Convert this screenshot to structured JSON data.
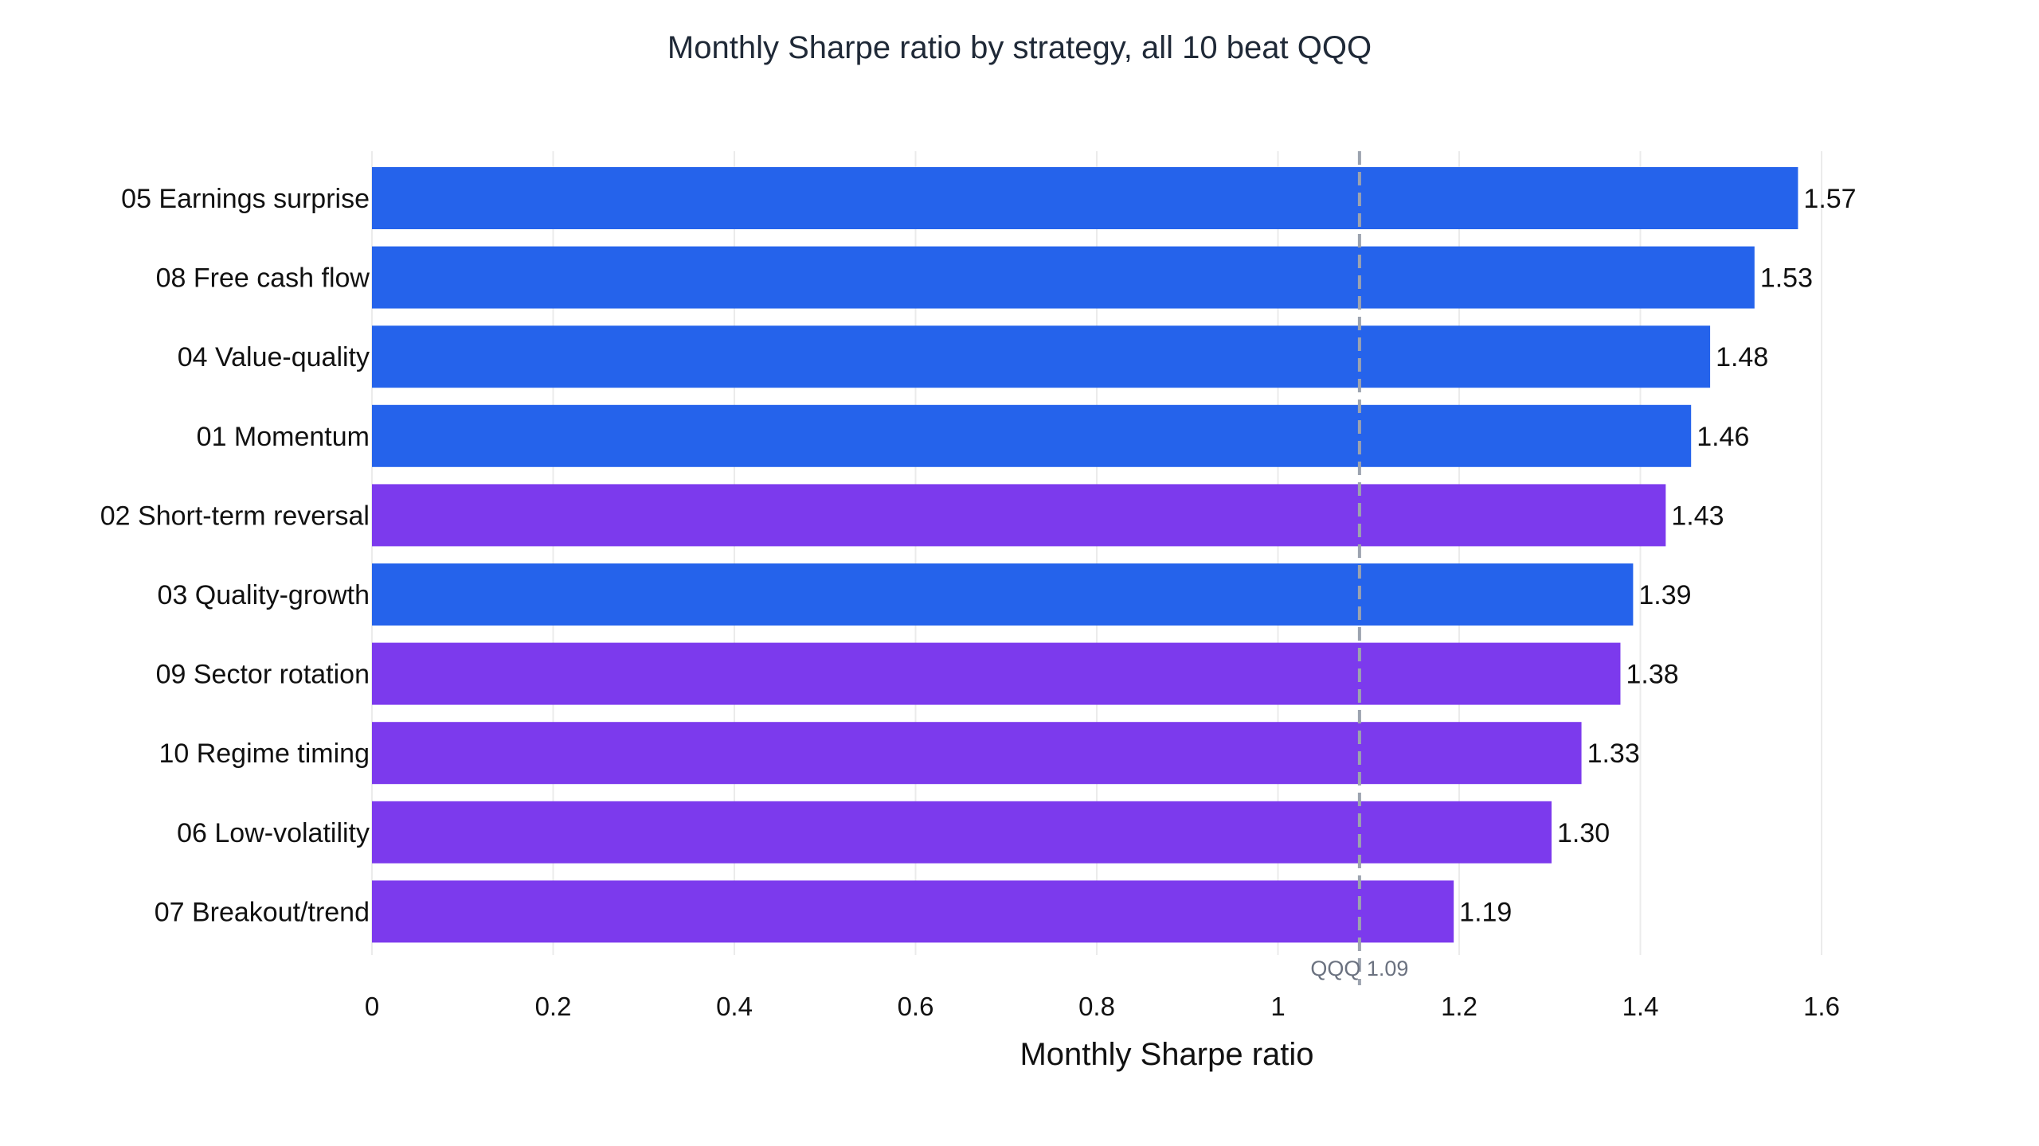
{
  "chart_data": {
    "type": "bar",
    "orientation": "horizontal",
    "title": "Monthly Sharpe ratio by strategy, all 10 beat QQQ",
    "xlabel": "Monthly Sharpe ratio",
    "ylabel": "",
    "xlim": [
      0,
      1.65
    ],
    "xticks": [
      0,
      0.2,
      0.4,
      0.6,
      0.8,
      1,
      1.2,
      1.4,
      1.6
    ],
    "xtick_labels": [
      "0",
      "0.2",
      "0.4",
      "0.6",
      "0.8",
      "1",
      "1.2",
      "1.4",
      "1.6"
    ],
    "grid": "vertical",
    "categories": [
      "05 Earnings surprise",
      "08 Free cash flow",
      "04 Value-quality",
      "01 Momentum",
      "02 Short-term reversal",
      "03 Quality-growth",
      "09 Sector rotation",
      "10 Regime timing",
      "06 Low-volatility",
      "07 Breakout/trend"
    ],
    "values": [
      1.574,
      1.526,
      1.477,
      1.456,
      1.428,
      1.392,
      1.378,
      1.335,
      1.302,
      1.194
    ],
    "value_labels": [
      "1.57",
      "1.53",
      "1.48",
      "1.46",
      "1.43",
      "1.39",
      "1.38",
      "1.33",
      "1.30",
      "1.19"
    ],
    "bar_colors": [
      "#2563eb",
      "#2563eb",
      "#2563eb",
      "#2563eb",
      "#7c3aed",
      "#2563eb",
      "#7c3aed",
      "#7c3aed",
      "#7c3aed",
      "#7c3aed"
    ],
    "reference_line": {
      "value": 1.09,
      "label": "QQQ 1.09",
      "color": "#9ca3af",
      "style": "dashed"
    }
  }
}
